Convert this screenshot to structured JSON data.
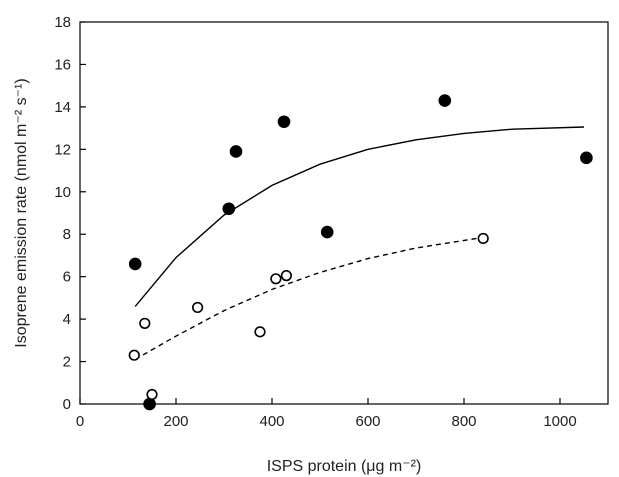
{
  "chart_data": {
    "type": "scatter",
    "xlabel": "ISPS protein (μg m⁻²)",
    "ylabel": "Isoprene emission rate (nmol m⁻² s⁻¹)",
    "xlim": [
      0,
      1100
    ],
    "ylim": [
      0,
      18
    ],
    "x_ticks": [
      0,
      200,
      400,
      600,
      800,
      1000
    ],
    "y_ticks": [
      0,
      2,
      4,
      6,
      8,
      10,
      12,
      14,
      16,
      18
    ],
    "grid": false,
    "legend": "none",
    "series": [
      {
        "marker": "filled-circle",
        "color": "#000000",
        "points": [
          [
            115,
            6.6
          ],
          [
            145,
            0.0
          ],
          [
            310,
            9.2
          ],
          [
            325,
            11.9
          ],
          [
            425,
            13.3
          ],
          [
            515,
            8.1
          ],
          [
            760,
            14.3
          ],
          [
            1055,
            11.6
          ]
        ]
      },
      {
        "marker": "open-circle",
        "color": "#000000",
        "points": [
          [
            113,
            2.3
          ],
          [
            135,
            3.8
          ],
          [
            150,
            0.45
          ],
          [
            245,
            4.55
          ],
          [
            375,
            3.4
          ],
          [
            408,
            5.9
          ],
          [
            430,
            6.05
          ],
          [
            840,
            7.8
          ]
        ]
      }
    ],
    "fits": [
      {
        "style": "solid",
        "color": "#000000",
        "points": [
          [
            115,
            4.6
          ],
          [
            200,
            6.9
          ],
          [
            300,
            8.9
          ],
          [
            400,
            10.3
          ],
          [
            500,
            11.3
          ],
          [
            600,
            12.0
          ],
          [
            700,
            12.45
          ],
          [
            800,
            12.75
          ],
          [
            900,
            12.95
          ],
          [
            1050,
            13.05
          ]
        ]
      },
      {
        "style": "dashed",
        "color": "#000000",
        "points": [
          [
            115,
            2.1
          ],
          [
            200,
            3.2
          ],
          [
            300,
            4.4
          ],
          [
            400,
            5.4
          ],
          [
            500,
            6.2
          ],
          [
            600,
            6.85
          ],
          [
            700,
            7.35
          ],
          [
            840,
            7.85
          ]
        ]
      }
    ]
  }
}
